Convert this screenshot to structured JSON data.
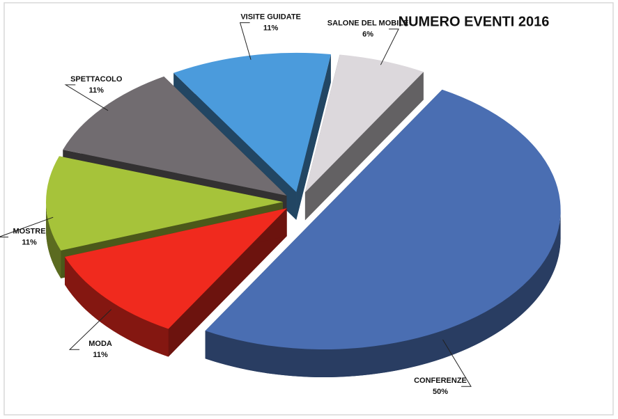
{
  "chart_data": {
    "type": "pie3d",
    "title": "NUMERO EVENTI 2016",
    "categories": [
      "CONFERENZE",
      "MODA",
      "MOSTRE",
      "SPETTACOLO",
      "VISITE GUIDATE",
      "SALONE DEL MOBILE"
    ],
    "values": [
      50,
      11,
      11,
      11,
      11,
      6
    ],
    "value_labels": [
      "50%",
      "11%",
      "11%",
      "11%",
      "11%",
      "6%"
    ],
    "colors": [
      "#4a6eb2",
      "#f02a1e",
      "#a6c33a",
      "#716c70",
      "#4b9bdc",
      "#dcd8dc"
    ]
  }
}
